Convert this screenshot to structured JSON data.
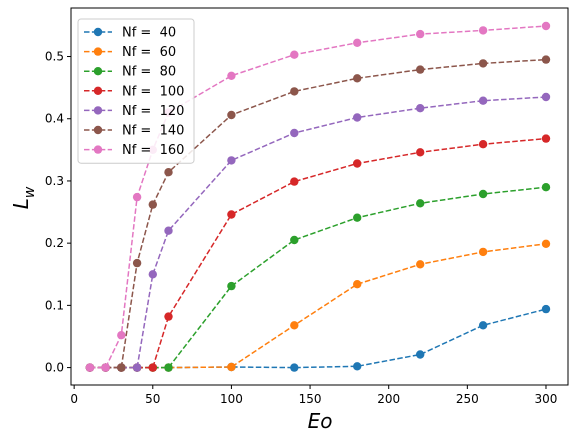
{
  "chart_data": {
    "type": "line",
    "xlabel": "Eo",
    "ylabel": "L_w",
    "xlim": [
      -2,
      314
    ],
    "ylim": [
      -0.028,
      0.578
    ],
    "xticks": [
      0,
      50,
      100,
      150,
      200,
      250,
      300
    ],
    "yticks": [
      0.0,
      0.1,
      0.2,
      0.3,
      0.4,
      0.5
    ],
    "grid": false,
    "legend_position": "top-left",
    "line_style": "dashed",
    "marker": "circle",
    "series": [
      {
        "name": "Nf =  40",
        "color": "#1f77b4",
        "x": [
          10,
          20,
          30,
          40,
          50,
          60,
          100,
          140,
          180,
          220,
          260,
          300
        ],
        "y": [
          0,
          0,
          0,
          0,
          0,
          0,
          0.001,
          0.0,
          0.002,
          0.021,
          0.068,
          0.094
        ]
      },
      {
        "name": "Nf =  60",
        "color": "#ff7f0e",
        "x": [
          10,
          20,
          30,
          40,
          50,
          60,
          100,
          140,
          180,
          220,
          260,
          300
        ],
        "y": [
          0,
          0,
          0,
          0,
          0,
          0,
          0.001,
          0.068,
          0.134,
          0.166,
          0.186,
          0.199
        ]
      },
      {
        "name": "Nf =  80",
        "color": "#2ca02c",
        "x": [
          10,
          20,
          30,
          40,
          50,
          60,
          100,
          140,
          180,
          220,
          260,
          300
        ],
        "y": [
          0,
          0,
          0,
          0,
          0,
          0,
          0.131,
          0.205,
          0.241,
          0.264,
          0.279,
          0.29
        ]
      },
      {
        "name": "Nf =  100",
        "color": "#d62728",
        "x": [
          10,
          20,
          30,
          40,
          50,
          60,
          100,
          140,
          180,
          220,
          260,
          300
        ],
        "y": [
          0,
          0,
          0,
          0,
          0,
          0.082,
          0.246,
          0.299,
          0.328,
          0.346,
          0.359,
          0.368
        ]
      },
      {
        "name": "Nf =  120",
        "color": "#9467bd",
        "x": [
          10,
          20,
          30,
          40,
          50,
          60,
          100,
          140,
          180,
          220,
          260,
          300
        ],
        "y": [
          0,
          0,
          0,
          0,
          0.15,
          0.22,
          0.333,
          0.377,
          0.402,
          0.417,
          0.429,
          0.435
        ]
      },
      {
        "name": "Nf =  140",
        "color": "#8c564b",
        "x": [
          10,
          20,
          30,
          40,
          50,
          60,
          100,
          140,
          180,
          220,
          260,
          300
        ],
        "y": [
          0,
          0,
          0,
          0.168,
          0.262,
          0.314,
          0.406,
          0.444,
          0.465,
          0.479,
          0.489,
          0.495
        ]
      },
      {
        "name": "Nf =  160",
        "color": "#e377c2",
        "x": [
          10,
          20,
          30,
          40,
          50,
          60,
          100,
          140,
          180,
          220,
          260,
          300
        ],
        "y": [
          0,
          0,
          0.052,
          0.274,
          0.35,
          0.41,
          0.469,
          0.503,
          0.522,
          0.536,
          0.542,
          0.549
        ]
      }
    ]
  }
}
